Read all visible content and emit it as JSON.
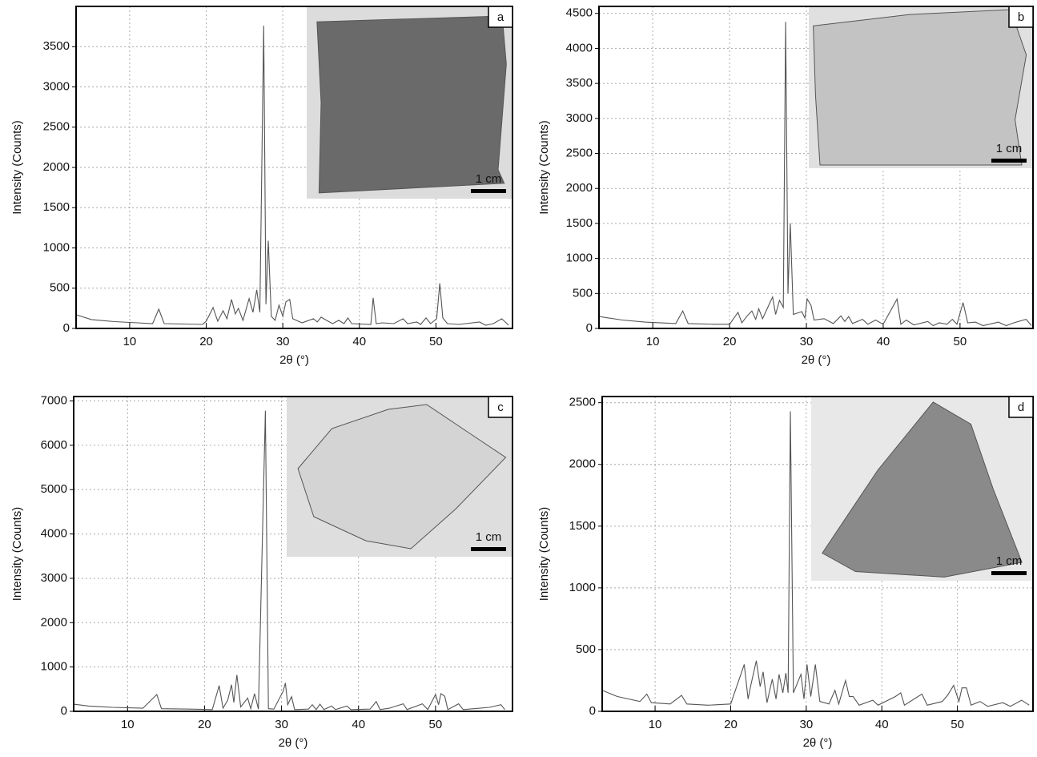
{
  "chart_data": [
    {
      "type": "line",
      "panel_label": "a",
      "scale_label": "1 cm",
      "xlabel": "2θ (°)",
      "ylabel": "Intensity (Counts)",
      "color": "#555555",
      "grid": true,
      "xlim": [
        3,
        60
      ],
      "xticks": [
        10,
        20,
        30,
        40,
        50
      ],
      "ylim": [
        0,
        4000
      ],
      "yticks": [
        0,
        500,
        1000,
        1500,
        2000,
        2500,
        3000,
        3500
      ],
      "x": [
        3,
        5,
        8,
        11,
        13,
        13.8,
        14.5,
        17,
        19.5,
        20,
        20.9,
        21.5,
        22.2,
        22.7,
        23.3,
        23.8,
        24.2,
        24.8,
        25.6,
        26.1,
        26.6,
        27,
        27.5,
        27.8,
        28.1,
        28.5,
        29,
        29.5,
        30,
        30.4,
        30.9,
        31.3,
        32.5,
        34,
        34.5,
        35,
        35.7,
        36.5,
        37.3,
        38,
        38.5,
        39,
        41.5,
        41.8,
        42.2,
        43,
        44.5,
        45.7,
        46.3,
        47.5,
        48,
        48.7,
        49.3,
        50.1,
        50.5,
        50.9,
        51.5,
        53,
        55.7,
        56.5,
        57.5,
        58.6,
        59.5
      ],
      "values": [
        170,
        110,
        85,
        70,
        60,
        240,
        60,
        55,
        50,
        90,
        260,
        90,
        220,
        120,
        360,
        180,
        250,
        100,
        370,
        200,
        480,
        200,
        3760,
        300,
        1090,
        150,
        100,
        290,
        150,
        330,
        360,
        120,
        70,
        120,
        80,
        140,
        100,
        60,
        100,
        60,
        130,
        60,
        50,
        380,
        60,
        70,
        60,
        120,
        60,
        80,
        50,
        130,
        60,
        120,
        560,
        130,
        60,
        50,
        80,
        40,
        60,
        120,
        40
      ]
    },
    {
      "type": "line",
      "panel_label": "b",
      "scale_label": "1 cm",
      "xlabel": "2θ (°)",
      "ylabel": "Intensity (Counts)",
      "color": "#555555",
      "grid": true,
      "xlim": [
        3,
        59.5
      ],
      "xticks": [
        10,
        20,
        30,
        40,
        50
      ],
      "ylim": [
        0,
        4600
      ],
      "yticks": [
        0,
        500,
        1000,
        1500,
        2000,
        2500,
        3000,
        3500,
        4000,
        4500
      ],
      "x": [
        3,
        6,
        9,
        13,
        13.9,
        14.6,
        18,
        20,
        21.1,
        21.6,
        22.3,
        22.9,
        23.4,
        23.8,
        24.3,
        25.6,
        26,
        26.5,
        27,
        27.3,
        27.6,
        27.9,
        28.3,
        29.4,
        29.8,
        30.1,
        30.6,
        31,
        32.3,
        33.5,
        34.5,
        35,
        35.5,
        36,
        37.3,
        38,
        39,
        40,
        41.8,
        42.3,
        43,
        44,
        45.8,
        46.5,
        47.3,
        48.3,
        49,
        49.6,
        50.4,
        51,
        52,
        53,
        55,
        56,
        57,
        58.6,
        59.3
      ],
      "values": [
        170,
        120,
        90,
        70,
        250,
        70,
        60,
        60,
        230,
        80,
        180,
        250,
        130,
        280,
        140,
        450,
        200,
        400,
        300,
        4380,
        500,
        1500,
        200,
        240,
        150,
        420,
        330,
        120,
        140,
        70,
        180,
        100,
        170,
        70,
        130,
        60,
        120,
        60,
        420,
        60,
        120,
        50,
        100,
        40,
        80,
        60,
        130,
        60,
        370,
        80,
        90,
        40,
        90,
        40,
        80,
        130,
        40
      ]
    },
    {
      "type": "line",
      "panel_label": "c",
      "scale_label": "1 cm",
      "xlabel": "2θ (°)",
      "ylabel": "Intensity (Counts)",
      "color": "#555555",
      "grid": true,
      "xlim": [
        3,
        60
      ],
      "xticks": [
        10,
        20,
        30,
        40,
        50
      ],
      "ylim": [
        0,
        7100
      ],
      "yticks": [
        0,
        1000,
        2000,
        3000,
        4000,
        5000,
        6000,
        7000
      ],
      "x": [
        3,
        5,
        8,
        12,
        13.8,
        14.4,
        18,
        21,
        21.9,
        22.4,
        23,
        23.5,
        23.8,
        24.2,
        24.7,
        25.6,
        26,
        26.5,
        27,
        27.9,
        28.3,
        29,
        30.2,
        30.5,
        30.8,
        31.3,
        31.7,
        33.5,
        34,
        34.5,
        35,
        35.5,
        36.5,
        37,
        38.5,
        39,
        41.5,
        42.3,
        42.8,
        44,
        45.8,
        46.3,
        48.3,
        49,
        50,
        50.4,
        50.7,
        51.2,
        51.6,
        53,
        53.6,
        55,
        57,
        58.5,
        59
      ],
      "values": [
        160,
        120,
        90,
        70,
        380,
        60,
        50,
        40,
        580,
        70,
        250,
        600,
        200,
        820,
        100,
        300,
        60,
        400,
        50,
        6780,
        60,
        50,
        450,
        640,
        150,
        330,
        40,
        50,
        150,
        40,
        160,
        40,
        120,
        40,
        120,
        40,
        50,
        220,
        40,
        70,
        170,
        40,
        170,
        40,
        380,
        150,
        400,
        340,
        40,
        170,
        40,
        60,
        90,
        150,
        40
      ]
    },
    {
      "type": "line",
      "panel_label": "d",
      "scale_label": "1 cm",
      "xlabel": "2θ (°)",
      "ylabel": "Intensity (Counts)",
      "color": "#555555",
      "grid": true,
      "xlim": [
        3,
        60
      ],
      "xticks": [
        10,
        20,
        30,
        40,
        50
      ],
      "ylim": [
        0,
        2550
      ],
      "yticks": [
        0,
        500,
        1000,
        1500,
        2000,
        2500
      ],
      "x": [
        3,
        5,
        8,
        8.9,
        9.5,
        12,
        13.5,
        14.2,
        17,
        20,
        21.8,
        22.3,
        22.7,
        23.4,
        23.9,
        24.3,
        24.8,
        25.5,
        26,
        26.4,
        26.9,
        27.3,
        27.6,
        27.9,
        28.3,
        29.3,
        29.7,
        30.1,
        30.6,
        31.2,
        31.8,
        33,
        33.8,
        34.3,
        35.2,
        35.7,
        36.2,
        37,
        38.8,
        39.5,
        41.8,
        42.5,
        43,
        45.3,
        46,
        48,
        48.7,
        49.5,
        50.2,
        50.6,
        51.2,
        51.8,
        53,
        54,
        56,
        57,
        58.5,
        59.5
      ],
      "values": [
        170,
        120,
        80,
        140,
        70,
        60,
        130,
        60,
        50,
        60,
        380,
        100,
        220,
        410,
        200,
        320,
        70,
        260,
        100,
        300,
        150,
        310,
        150,
        2430,
        150,
        300,
        100,
        380,
        120,
        380,
        80,
        60,
        170,
        60,
        250,
        120,
        120,
        50,
        90,
        50,
        120,
        150,
        50,
        140,
        50,
        80,
        130,
        210,
        80,
        190,
        190,
        50,
        80,
        40,
        70,
        40,
        90,
        50
      ]
    }
  ]
}
